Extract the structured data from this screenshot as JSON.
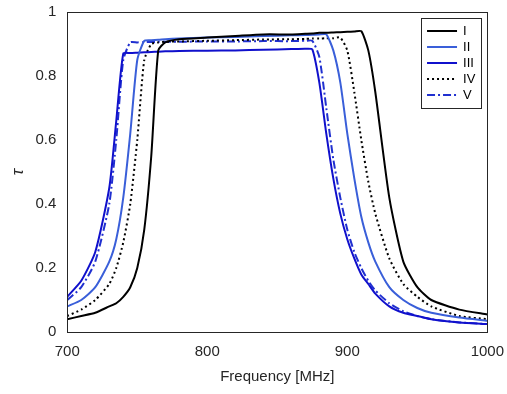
{
  "chart_data": {
    "type": "line",
    "x_label": "Frequency [MHz]",
    "y_label": "τ",
    "xlim": [
      700,
      1000
    ],
    "ylim": [
      0,
      1
    ],
    "xticks": [
      700,
      800,
      900,
      1000
    ],
    "yticks": [
      0,
      0.2,
      0.4,
      0.6,
      0.8,
      1
    ],
    "grid": false,
    "legend": "upper right",
    "x": [
      700,
      710,
      720,
      730,
      735,
      740,
      745,
      750,
      755,
      760,
      765,
      770,
      780,
      800,
      820,
      840,
      860,
      870,
      875,
      880,
      885,
      890,
      895,
      900,
      905,
      910,
      915,
      920,
      930,
      940,
      950,
      960,
      980,
      1000
    ],
    "series": [
      {
        "name": "I",
        "color": "#000000",
        "line_style": "solid",
        "values": [
          0.04,
          0.05,
          0.06,
          0.08,
          0.09,
          0.11,
          0.14,
          0.2,
          0.32,
          0.55,
          0.88,
          0.905,
          0.915,
          0.92,
          0.925,
          0.93,
          0.93,
          0.932,
          0.933,
          0.935,
          0.935,
          0.936,
          0.937,
          0.938,
          0.939,
          0.94,
          0.88,
          0.75,
          0.42,
          0.22,
          0.14,
          0.1,
          0.07,
          0.055
        ]
      },
      {
        "name": "II",
        "color": "#3a5fd9",
        "line_style": "solid",
        "values": [
          0.08,
          0.1,
          0.14,
          0.22,
          0.29,
          0.42,
          0.62,
          0.85,
          0.91,
          0.912,
          0.913,
          0.915,
          0.917,
          0.92,
          0.922,
          0.925,
          0.927,
          0.928,
          0.929,
          0.93,
          0.93,
          0.88,
          0.78,
          0.62,
          0.48,
          0.36,
          0.28,
          0.22,
          0.14,
          0.1,
          0.075,
          0.06,
          0.045,
          0.035
        ]
      },
      {
        "name": "III",
        "color": "#1010cc",
        "line_style": "solid",
        "values": [
          0.11,
          0.16,
          0.25,
          0.45,
          0.66,
          0.87,
          0.872,
          0.873,
          0.874,
          0.875,
          0.876,
          0.877,
          0.878,
          0.879,
          0.88,
          0.882,
          0.884,
          0.885,
          0.883,
          0.78,
          0.62,
          0.48,
          0.37,
          0.29,
          0.23,
          0.18,
          0.15,
          0.12,
          0.08,
          0.06,
          0.05,
          0.04,
          0.03,
          0.025
        ]
      },
      {
        "name": "IV",
        "color": "#000000",
        "line_style": "dotted",
        "values": [
          0.05,
          0.07,
          0.1,
          0.15,
          0.2,
          0.28,
          0.4,
          0.6,
          0.85,
          0.9,
          0.905,
          0.907,
          0.908,
          0.91,
          0.912,
          0.914,
          0.915,
          0.916,
          0.917,
          0.917,
          0.918,
          0.918,
          0.92,
          0.88,
          0.75,
          0.6,
          0.47,
          0.37,
          0.23,
          0.15,
          0.11,
          0.08,
          0.05,
          0.04
        ]
      },
      {
        "name": "V",
        "color": "#2030d0",
        "line_style": "dashdot",
        "values": [
          0.1,
          0.14,
          0.22,
          0.4,
          0.6,
          0.85,
          0.905,
          0.905,
          0.906,
          0.906,
          0.907,
          0.907,
          0.907,
          0.908,
          0.908,
          0.909,
          0.909,
          0.91,
          0.91,
          0.86,
          0.7,
          0.54,
          0.42,
          0.32,
          0.25,
          0.2,
          0.16,
          0.13,
          0.09,
          0.065,
          0.05,
          0.04,
          0.03,
          0.025
        ]
      }
    ]
  }
}
